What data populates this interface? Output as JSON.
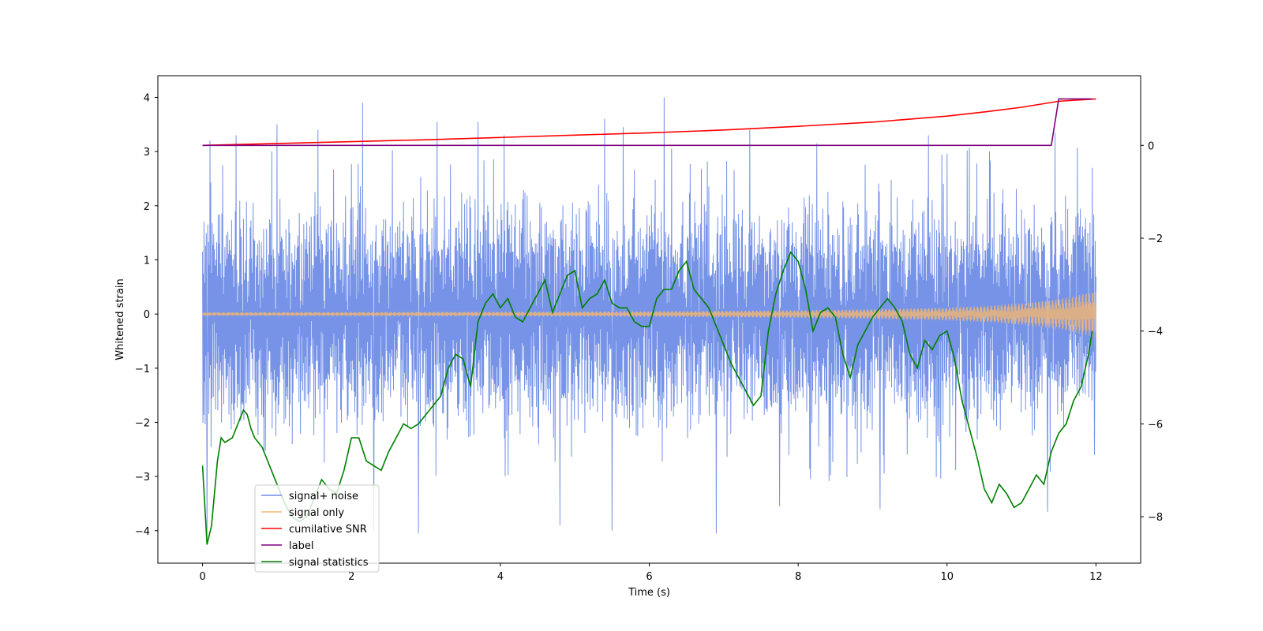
{
  "chart_data": {
    "type": "line",
    "xlabel": "Time (s)",
    "ylabel": "Whitened strain",
    "xlim": [
      -0.6,
      12.6
    ],
    "ylim": [
      -4.6,
      4.4
    ],
    "y2lim": [
      -9.0,
      1.5
    ],
    "xticks": [
      0,
      2,
      4,
      6,
      8,
      10,
      12
    ],
    "yticks": [
      -4,
      -3,
      -2,
      -1,
      0,
      1,
      2,
      3,
      4
    ],
    "y2ticks": [
      -8,
      -6,
      -4,
      -2,
      0
    ],
    "legend_position": "lower-left",
    "series": [
      {
        "name": "signal+ noise",
        "color": "#6f8de6",
        "axis": "left",
        "description_note": "dense noise, approx uniform band between about -2 and 2 with spikes up to about 4 and down to about -4",
        "envelope": {
          "x": [
            0,
            1,
            2,
            3,
            4,
            5,
            6,
            7,
            8,
            9,
            10,
            11,
            12
          ],
          "upper_typical": [
            1.9,
            2.0,
            1.9,
            2.0,
            2.0,
            2.0,
            2.0,
            1.9,
            2.0,
            2.0,
            2.0,
            2.0,
            2.0
          ],
          "lower_typical": [
            -2.0,
            -2.0,
            -1.9,
            -2.0,
            -2.0,
            -2.0,
            -2.0,
            -2.0,
            -2.0,
            -2.0,
            -2.0,
            -2.0,
            -2.0
          ]
        },
        "peaks": [
          {
            "x": 0.02,
            "y": 1.7
          },
          {
            "x": 0.06,
            "y": -4.15
          },
          {
            "x": 0.1,
            "y": 3.2
          },
          {
            "x": 0.45,
            "y": 3.3
          },
          {
            "x": 1.0,
            "y": 3.5
          },
          {
            "x": 1.55,
            "y": 3.4
          },
          {
            "x": 2.15,
            "y": 3.9
          },
          {
            "x": 2.3,
            "y": -4.0
          },
          {
            "x": 2.9,
            "y": -4.05
          },
          {
            "x": 3.15,
            "y": 3.55
          },
          {
            "x": 3.7,
            "y": 3.55
          },
          {
            "x": 4.05,
            "y": 3.3
          },
          {
            "x": 4.8,
            "y": -3.9
          },
          {
            "x": 5.4,
            "y": 3.6
          },
          {
            "x": 5.5,
            "y": -4.0
          },
          {
            "x": 5.65,
            "y": 3.45
          },
          {
            "x": 6.2,
            "y": 4.0
          },
          {
            "x": 6.9,
            "y": -4.05
          },
          {
            "x": 7.35,
            "y": 3.4
          },
          {
            "x": 7.75,
            "y": -3.55
          },
          {
            "x": 8.25,
            "y": 3.15
          },
          {
            "x": 9.1,
            "y": -3.6
          },
          {
            "x": 9.75,
            "y": 3.3
          },
          {
            "x": 11.35,
            "y": -3.65
          },
          {
            "x": 11.45,
            "y": 3.35
          },
          {
            "x": 11.95,
            "y": 2.7
          },
          {
            "x": 11.98,
            "y": -2.6
          }
        ]
      },
      {
        "name": "signal only",
        "color": "#f5b871",
        "axis": "left",
        "amplitude": {
          "x": [
            0,
            2,
            4,
            6,
            7,
            8,
            9,
            10,
            10.5,
            11,
            11.5,
            12
          ],
          "values": [
            0.03,
            0.035,
            0.04,
            0.05,
            0.06,
            0.07,
            0.09,
            0.12,
            0.15,
            0.2,
            0.28,
            0.43
          ]
        }
      },
      {
        "name": "cumilative SNR",
        "color": "#ff0000",
        "axis": "right",
        "x": [
          0,
          1,
          2,
          3,
          4,
          5,
          6,
          7,
          8,
          9,
          10,
          10.5,
          11,
          11.5,
          12
        ],
        "values": [
          0.0,
          0.04,
          0.08,
          0.12,
          0.17,
          0.22,
          0.27,
          0.33,
          0.41,
          0.5,
          0.63,
          0.72,
          0.82,
          0.95,
          1.0
        ]
      },
      {
        "name": "label",
        "color": "#800080",
        "axis": "right",
        "x": [
          0,
          11.4,
          11.5,
          11.95
        ],
        "values": [
          0,
          0,
          1,
          1
        ]
      },
      {
        "name": "signal statistics",
        "color": "#008000",
        "axis": "right",
        "x": [
          0,
          0.06,
          0.12,
          0.2,
          0.25,
          0.3,
          0.4,
          0.5,
          0.55,
          0.6,
          0.65,
          0.7,
          0.8,
          0.9,
          1.0,
          1.1,
          1.2,
          1.3,
          1.4,
          1.5,
          1.6,
          1.7,
          1.8,
          1.9,
          2.0,
          2.1,
          2.2,
          2.3,
          2.4,
          2.5,
          2.6,
          2.7,
          2.8,
          2.9,
          3.0,
          3.1,
          3.2,
          3.3,
          3.4,
          3.5,
          3.6,
          3.7,
          3.8,
          3.9,
          4.0,
          4.1,
          4.2,
          4.3,
          4.4,
          4.5,
          4.6,
          4.7,
          4.8,
          4.9,
          5.0,
          5.1,
          5.2,
          5.3,
          5.4,
          5.5,
          5.6,
          5.7,
          5.8,
          5.9,
          6.0,
          6.1,
          6.2,
          6.3,
          6.4,
          6.5,
          6.6,
          6.7,
          6.8,
          6.9,
          7.0,
          7.1,
          7.2,
          7.3,
          7.4,
          7.5,
          7.6,
          7.7,
          7.8,
          7.9,
          8.0,
          8.1,
          8.2,
          8.3,
          8.4,
          8.5,
          8.6,
          8.7,
          8.8,
          8.9,
          9.0,
          9.1,
          9.2,
          9.3,
          9.4,
          9.5,
          9.6,
          9.7,
          9.8,
          9.9,
          10.0,
          10.1,
          10.2,
          10.3,
          10.4,
          10.5,
          10.6,
          10.7,
          10.8,
          10.9,
          11.0,
          11.1,
          11.2,
          11.3,
          11.4,
          11.5,
          11.6,
          11.7,
          11.8,
          11.9,
          11.95
        ],
        "values": [
          -6.9,
          -8.6,
          -8.2,
          -6.8,
          -6.3,
          -6.4,
          -6.3,
          -5.9,
          -5.7,
          -5.8,
          -6.1,
          -6.3,
          -6.5,
          -6.9,
          -7.3,
          -7.7,
          -8.0,
          -8.1,
          -8.0,
          -7.6,
          -7.2,
          -7.4,
          -7.5,
          -7.0,
          -6.3,
          -6.3,
          -6.8,
          -6.9,
          -7.0,
          -6.6,
          -6.3,
          -6.0,
          -6.1,
          -6.0,
          -5.8,
          -5.6,
          -5.4,
          -4.8,
          -4.5,
          -4.6,
          -5.2,
          -3.8,
          -3.4,
          -3.2,
          -3.5,
          -3.3,
          -3.7,
          -3.8,
          -3.5,
          -3.2,
          -2.9,
          -3.6,
          -3.2,
          -2.8,
          -2.7,
          -3.5,
          -3.3,
          -3.2,
          -2.9,
          -3.4,
          -3.5,
          -3.5,
          -3.8,
          -3.9,
          -3.9,
          -3.3,
          -3.1,
          -3.1,
          -2.7,
          -2.5,
          -3.1,
          -3.3,
          -3.5,
          -3.9,
          -4.3,
          -4.7,
          -5.0,
          -5.3,
          -5.6,
          -5.4,
          -4.0,
          -3.2,
          -2.7,
          -2.3,
          -2.5,
          -3.1,
          -4.0,
          -3.6,
          -3.5,
          -3.7,
          -4.5,
          -5.0,
          -4.3,
          -4.0,
          -3.7,
          -3.5,
          -3.3,
          -3.5,
          -3.8,
          -4.5,
          -4.8,
          -4.2,
          -4.4,
          -4.1,
          -4.0,
          -4.6,
          -5.5,
          -6.1,
          -6.7,
          -7.4,
          -7.7,
          -7.3,
          -7.5,
          -7.8,
          -7.7,
          -7.4,
          -7.1,
          -7.3,
          -6.6,
          -6.2,
          -6.0,
          -5.5,
          -5.2,
          -4.5,
          -4.0
        ],
        "description_note": "jagged line on right axis"
      }
    ]
  }
}
